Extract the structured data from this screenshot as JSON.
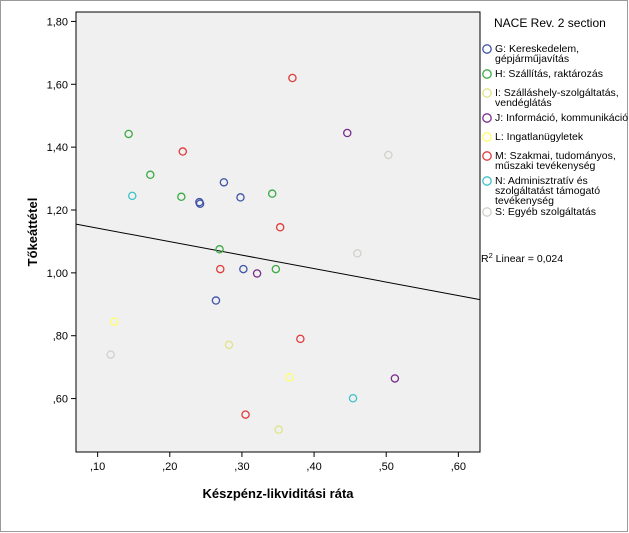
{
  "chart_data": {
    "type": "scatter",
    "xlabel": "Készpénz-likviditási ráta",
    "ylabel": "Tőkeáttétel",
    "xlim": [
      0.07,
      0.63
    ],
    "ylim": [
      0.43,
      1.83
    ],
    "x_ticks": [
      {
        "value": 0.1,
        "label": ",10"
      },
      {
        "value": 0.2,
        "label": ",20"
      },
      {
        "value": 0.3,
        "label": ",30"
      },
      {
        "value": 0.4,
        "label": ",40"
      },
      {
        "value": 0.5,
        "label": ",50"
      },
      {
        "value": 0.6,
        "label": ",60"
      }
    ],
    "y_ticks": [
      {
        "value": 0.6,
        "label": ",60"
      },
      {
        "value": 0.8,
        "label": ",80"
      },
      {
        "value": 1.0,
        "label": "1,00"
      },
      {
        "value": 1.2,
        "label": "1,20"
      },
      {
        "value": 1.4,
        "label": "1,40"
      },
      {
        "value": 1.6,
        "label": "1,60"
      },
      {
        "value": 1.8,
        "label": "1,80"
      }
    ],
    "grid": false,
    "legend": {
      "title": "NACE Rev. 2 section",
      "placement": "right",
      "entries": [
        {
          "lines": [
            "G: Kereskedelem,",
            "gépjárműjavítás"
          ],
          "color": "#3f54a8"
        },
        {
          "lines": [
            "H: Szállítás, raktározás"
          ],
          "color": "#3cab45"
        },
        {
          "lines": [
            "I: Szálláshely-szolgáltatás,",
            "vendéglátás"
          ],
          "color": "#e1e38a"
        },
        {
          "lines": [
            "J: Információ, kommunikáció"
          ],
          "color": "#7a2c8c"
        },
        {
          "lines": [
            "L: Ingatlanügyletek"
          ],
          "color": "#fffe6a"
        },
        {
          "lines": [
            "M: Szakmai, tudományos,",
            "műszaki tevékenység"
          ],
          "color": "#e03a3a"
        },
        {
          "lines": [
            "N: Adminisztratív és",
            "szolgáltatást támogató",
            "tevékenység"
          ],
          "color": "#3ec1c8"
        },
        {
          "lines": [
            "S: Egyéb szolgáltatás"
          ],
          "color": "#d0d0cc"
        }
      ]
    },
    "fit_line": {
      "label": "R² Linear = 0,024",
      "r2_label_prefix": "R",
      "r2_label_sup": "2",
      "r2_label_suffix": " Linear = 0,024",
      "x0": 0.07,
      "y0": 1.155,
      "x1": 0.63,
      "y1": 0.915,
      "color": "#000000"
    },
    "series": [
      {
        "name": "G: Kereskedelem, gépjárműjavítás",
        "color": "#3f54a8",
        "points": [
          [
            0.241,
            1.225
          ],
          [
            0.242,
            1.22
          ],
          [
            0.275,
            1.288
          ],
          [
            0.298,
            1.24
          ],
          [
            0.302,
            1.012
          ],
          [
            0.264,
            0.912
          ]
        ]
      },
      {
        "name": "H: Szállítás, raktározás",
        "color": "#3cab45",
        "points": [
          [
            0.143,
            1.442
          ],
          [
            0.173,
            1.312
          ],
          [
            0.216,
            1.242
          ],
          [
            0.269,
            1.075
          ],
          [
            0.342,
            1.252
          ],
          [
            0.347,
            1.012
          ]
        ]
      },
      {
        "name": "I: Szálláshely-szolgáltatás, vendéglátás",
        "color": "#e1e38a",
        "points": [
          [
            0.282,
            0.771
          ],
          [
            0.351,
            0.501
          ]
        ]
      },
      {
        "name": "J: Információ, kommunikáció",
        "color": "#7a2c8c",
        "points": [
          [
            0.321,
            0.998
          ],
          [
            0.446,
            1.445
          ],
          [
            0.512,
            0.664
          ]
        ]
      },
      {
        "name": "L: Ingatlanügyletek",
        "color": "#fffe6a",
        "points": [
          [
            0.123,
            0.845
          ],
          [
            0.366,
            0.668
          ]
        ]
      },
      {
        "name": "M: Szakmai, tudományos, műszaki tevékenység",
        "color": "#e03a3a",
        "points": [
          [
            0.218,
            1.386
          ],
          [
            0.37,
            1.62
          ],
          [
            0.353,
            1.145
          ],
          [
            0.27,
            1.012
          ],
          [
            0.381,
            0.79
          ],
          [
            0.305,
            0.549
          ]
        ]
      },
      {
        "name": "N: Adminisztratív és szolgáltatást támogató tevékenység",
        "color": "#3ec1c8",
        "points": [
          [
            0.148,
            1.245
          ],
          [
            0.454,
            0.601
          ]
        ]
      },
      {
        "name": "S: Egyéb szolgáltatás",
        "color": "#d0d0cc",
        "points": [
          [
            0.118,
            0.74
          ],
          [
            0.46,
            1.062
          ],
          [
            0.503,
            1.375
          ]
        ]
      }
    ]
  }
}
